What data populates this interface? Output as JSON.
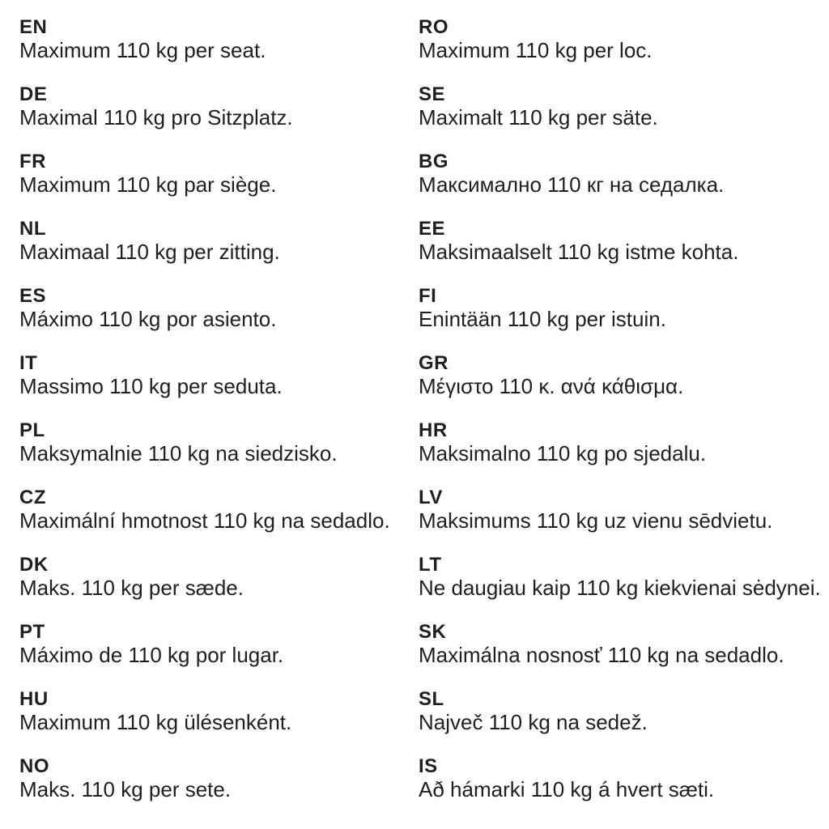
{
  "page": {
    "background": "#ffffff",
    "text_color": "#1f1f1f",
    "description": "Multilingual seat weight limit notice"
  },
  "columns": {
    "left": [
      {
        "code": "EN",
        "text": "Maximum 110 kg per seat."
      },
      {
        "code": "DE",
        "text": "Maximal 110 kg pro Sitzplatz."
      },
      {
        "code": "FR",
        "text": "Maximum 110 kg par siège."
      },
      {
        "code": "NL",
        "text": "Maximaal 110 kg per zitting."
      },
      {
        "code": "ES",
        "text": "Máximo 110 kg por asiento."
      },
      {
        "code": "IT",
        "text": "Massimo 110 kg per seduta."
      },
      {
        "code": "PL",
        "text": "Maksymalnie 110 kg na siedzisko."
      },
      {
        "code": "CZ",
        "text": "Maximální hmotnost 110 kg na sedadlo."
      },
      {
        "code": "DK",
        "text": "Maks. 110 kg per sæde."
      },
      {
        "code": "PT",
        "text": "Máximo de 110 kg por lugar."
      },
      {
        "code": "HU",
        "text": "Maximum 110 kg ülésenként."
      },
      {
        "code": "NO",
        "text": "Maks. 110 kg per sete."
      }
    ],
    "right": [
      {
        "code": "RO",
        "text": "Maximum 110 kg per loc."
      },
      {
        "code": "SE",
        "text": "Maximalt 110 kg per säte."
      },
      {
        "code": "BG",
        "text": "Максимално 110 кг на седалка."
      },
      {
        "code": "EE",
        "text": "Maksimaalselt 110 kg istme kohta."
      },
      {
        "code": "FI",
        "text": "Enintään 110 kg per istuin."
      },
      {
        "code": "GR",
        "text": "Μέγιστο 110 κ. ανά κάθισμα."
      },
      {
        "code": "HR",
        "text": "Maksimalno 110 kg po sjedalu."
      },
      {
        "code": "LV",
        "text": "Maksimums 110 kg uz vienu sēdvietu."
      },
      {
        "code": "LT",
        "text": "Ne daugiau kaip 110 kg kiekvienai sėdynei."
      },
      {
        "code": "SK",
        "text": "Maximálna nosnosť 110 kg na sedadlo."
      },
      {
        "code": "SL",
        "text": "Največ 110 kg na sedež."
      },
      {
        "code": "IS",
        "text": "Að hámarki 110 kg á hvert sæti."
      }
    ]
  }
}
